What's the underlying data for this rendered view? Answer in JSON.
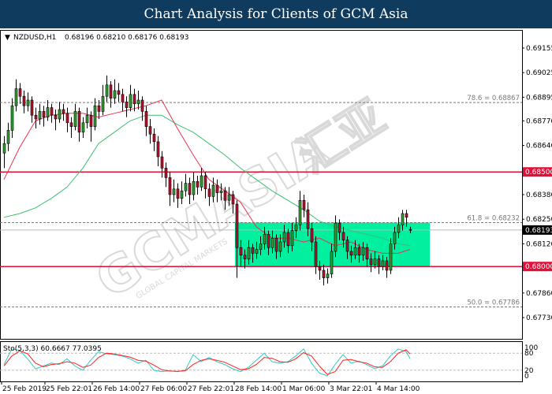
{
  "title": "Chart Analysis for Clients of GCM Asia",
  "chart_data": {
    "type": "candlestick",
    "symbol": "NZDUSD,H1",
    "ohlc_readout": "0.68196 0.68210 0.68176 0.68193",
    "colors": {
      "bull": "#2e9e2e",
      "bear": "#b5122e",
      "ma_fast": "#e8334f",
      "ma_slow": "#3cbf6f",
      "zone": "#00f0a0",
      "level": "#e0103a",
      "stoch_main": "#33c9c0",
      "stoch_signal": "#ff2020"
    },
    "ylim": [
      0.6765,
      0.6924
    ],
    "y_ticks": [
      "0.69155",
      "0.69025",
      "0.68895",
      "0.68770",
      "0.68640",
      "0.68380",
      "0.68250",
      "0.68120",
      "0.67860",
      "0.67730"
    ],
    "x_tick_labels": [
      "25 Feb 2019",
      "25 Feb 22:01",
      "26 Feb 14:00",
      "27 Feb 06:00",
      "27 Feb 22:01",
      "28 Feb 14:00",
      "1 Mar 06:00",
      "3 Mar 22:01",
      "4 Mar 14:00"
    ],
    "current_price": "0.68193",
    "levels": [
      {
        "label": "0.68500",
        "value": 0.685
      },
      {
        "label": "0.68000",
        "value": 0.68
      }
    ],
    "zone": {
      "from": 0.68,
      "to": 0.68232
    },
    "fib_levels": [
      {
        "label": "78.6 = 0.68867",
        "value": 0.68867
      },
      {
        "label": "61.8 = 0.68232",
        "value": 0.68232
      },
      {
        "label": "50.0 = 0.67786",
        "value": 0.67786
      }
    ],
    "candles": [
      [
        0.686,
        0.6869,
        0.6852,
        0.6865
      ],
      [
        0.6865,
        0.6876,
        0.6861,
        0.6872
      ],
      [
        0.6872,
        0.6889,
        0.6868,
        0.6885
      ],
      [
        0.6885,
        0.6899,
        0.6882,
        0.6894
      ],
      [
        0.6894,
        0.6897,
        0.6886,
        0.689
      ],
      [
        0.689,
        0.6893,
        0.6881,
        0.6885
      ],
      [
        0.6885,
        0.6892,
        0.6882,
        0.6888
      ],
      [
        0.6888,
        0.689,
        0.6876,
        0.688
      ],
      [
        0.688,
        0.6884,
        0.6873,
        0.6878
      ],
      [
        0.6878,
        0.6886,
        0.6875,
        0.6882
      ],
      [
        0.6882,
        0.6885,
        0.6874,
        0.6879
      ],
      [
        0.6879,
        0.6888,
        0.6877,
        0.6884
      ],
      [
        0.6884,
        0.6886,
        0.6876,
        0.688
      ],
      [
        0.688,
        0.6883,
        0.6872,
        0.6878
      ],
      [
        0.6878,
        0.6887,
        0.6876,
        0.6883
      ],
      [
        0.6883,
        0.6886,
        0.6877,
        0.6881
      ],
      [
        0.6881,
        0.6884,
        0.6871,
        0.6876
      ],
      [
        0.6876,
        0.6879,
        0.6868,
        0.6874
      ],
      [
        0.6874,
        0.6886,
        0.6872,
        0.6882
      ],
      [
        0.6882,
        0.6884,
        0.6866,
        0.6871
      ],
      [
        0.6871,
        0.6879,
        0.6868,
        0.6876
      ],
      [
        0.6876,
        0.6884,
        0.6873,
        0.688
      ],
      [
        0.688,
        0.6882,
        0.6866,
        0.6874
      ],
      [
        0.6874,
        0.6889,
        0.6872,
        0.6885
      ],
      [
        0.6885,
        0.6888,
        0.6878,
        0.6882
      ],
      [
        0.6882,
        0.6896,
        0.688,
        0.689
      ],
      [
        0.689,
        0.6901,
        0.6887,
        0.6896
      ],
      [
        0.6896,
        0.6898,
        0.6884,
        0.6889
      ],
      [
        0.6889,
        0.6899,
        0.6886,
        0.6893
      ],
      [
        0.6893,
        0.6897,
        0.6887,
        0.6891
      ],
      [
        0.6891,
        0.6894,
        0.6882,
        0.6887
      ],
      [
        0.6887,
        0.689,
        0.6879,
        0.6884
      ],
      [
        0.6884,
        0.6896,
        0.6882,
        0.6891
      ],
      [
        0.6891,
        0.6894,
        0.6882,
        0.6886
      ],
      [
        0.6886,
        0.6893,
        0.6883,
        0.6888
      ],
      [
        0.6888,
        0.689,
        0.6877,
        0.6882
      ],
      [
        0.6882,
        0.6885,
        0.6869,
        0.6874
      ],
      [
        0.6874,
        0.6878,
        0.6865,
        0.687
      ],
      [
        0.687,
        0.6873,
        0.6861,
        0.6866
      ],
      [
        0.6866,
        0.6869,
        0.6853,
        0.6858
      ],
      [
        0.6858,
        0.6861,
        0.6847,
        0.6852
      ],
      [
        0.6852,
        0.6855,
        0.6842,
        0.6847
      ],
      [
        0.6847,
        0.685,
        0.6832,
        0.6838
      ],
      [
        0.6838,
        0.6846,
        0.6834,
        0.6841
      ],
      [
        0.6841,
        0.6844,
        0.6831,
        0.6836
      ],
      [
        0.6836,
        0.6845,
        0.6833,
        0.684
      ],
      [
        0.684,
        0.6849,
        0.6837,
        0.6844
      ],
      [
        0.6844,
        0.6847,
        0.6833,
        0.6838
      ],
      [
        0.6838,
        0.685,
        0.6835,
        0.6845
      ],
      [
        0.6845,
        0.6848,
        0.6838,
        0.6842
      ],
      [
        0.6842,
        0.6852,
        0.684,
        0.6848
      ],
      [
        0.6848,
        0.685,
        0.6836,
        0.6841
      ],
      [
        0.6841,
        0.6844,
        0.6832,
        0.6837
      ],
      [
        0.6837,
        0.6847,
        0.6834,
        0.6843
      ],
      [
        0.6843,
        0.6846,
        0.6834,
        0.6839
      ],
      [
        0.6839,
        0.6844,
        0.6835,
        0.684
      ],
      [
        0.684,
        0.6842,
        0.683,
        0.6835
      ],
      [
        0.6835,
        0.6842,
        0.6832,
        0.6838
      ],
      [
        0.6838,
        0.684,
        0.6828,
        0.6833
      ],
      [
        0.6833,
        0.6835,
        0.6794,
        0.681
      ],
      [
        0.681,
        0.6814,
        0.68,
        0.6806
      ],
      [
        0.6806,
        0.6809,
        0.6799,
        0.6804
      ],
      [
        0.6804,
        0.6814,
        0.6801,
        0.681
      ],
      [
        0.681,
        0.6812,
        0.6802,
        0.6807
      ],
      [
        0.6807,
        0.6813,
        0.6804,
        0.6809
      ],
      [
        0.6809,
        0.6816,
        0.6806,
        0.6812
      ],
      [
        0.6812,
        0.6821,
        0.6809,
        0.6817
      ],
      [
        0.6817,
        0.6819,
        0.6806,
        0.681
      ],
      [
        0.681,
        0.6819,
        0.6807,
        0.6815
      ],
      [
        0.6815,
        0.6817,
        0.6804,
        0.6808
      ],
      [
        0.6808,
        0.6817,
        0.6805,
        0.6813
      ],
      [
        0.6813,
        0.6822,
        0.681,
        0.6818
      ],
      [
        0.6818,
        0.682,
        0.6807,
        0.6811
      ],
      [
        0.6811,
        0.6823,
        0.6808,
        0.6819
      ],
      [
        0.6819,
        0.6826,
        0.6815,
        0.6822
      ],
      [
        0.6822,
        0.684,
        0.6819,
        0.6835
      ],
      [
        0.6835,
        0.6838,
        0.6826,
        0.683
      ],
      [
        0.683,
        0.6834,
        0.6816,
        0.682
      ],
      [
        0.682,
        0.6823,
        0.6808,
        0.6813
      ],
      [
        0.6813,
        0.6816,
        0.6796,
        0.68
      ],
      [
        0.68,
        0.6803,
        0.6793,
        0.6798
      ],
      [
        0.6798,
        0.6801,
        0.679,
        0.6794
      ],
      [
        0.6794,
        0.6799,
        0.6791,
        0.6796
      ],
      [
        0.6796,
        0.6812,
        0.6794,
        0.6808
      ],
      [
        0.6808,
        0.6827,
        0.6805,
        0.6823
      ],
      [
        0.6823,
        0.6825,
        0.6814,
        0.6818
      ],
      [
        0.6818,
        0.6821,
        0.681,
        0.6814
      ],
      [
        0.6814,
        0.6816,
        0.6804,
        0.6808
      ],
      [
        0.6808,
        0.6811,
        0.6802,
        0.6806
      ],
      [
        0.6806,
        0.6814,
        0.6804,
        0.681
      ],
      [
        0.681,
        0.6812,
        0.6802,
        0.6806
      ],
      [
        0.6806,
        0.6813,
        0.6803,
        0.681
      ],
      [
        0.681,
        0.6812,
        0.68,
        0.6804
      ],
      [
        0.6804,
        0.6807,
        0.6797,
        0.6801
      ],
      [
        0.6801,
        0.6808,
        0.6799,
        0.6804
      ],
      [
        0.6804,
        0.6806,
        0.6796,
        0.68
      ],
      [
        0.68,
        0.6806,
        0.6798,
        0.6803
      ],
      [
        0.6803,
        0.6805,
        0.6794,
        0.6798
      ],
      [
        0.6798,
        0.6815,
        0.6796,
        0.6812
      ],
      [
        0.6812,
        0.6821,
        0.6809,
        0.6818
      ],
      [
        0.6818,
        0.6826,
        0.6815,
        0.6822
      ],
      [
        0.6822,
        0.683,
        0.6819,
        0.6828
      ],
      [
        0.6828,
        0.683,
        0.6821,
        0.6826
      ],
      [
        0.68196,
        0.6821,
        0.68176,
        0.68193
      ]
    ],
    "ma_fast": [
      0.6846,
      0.6863,
      0.6877,
      0.688,
      0.6881,
      0.6881,
      0.6879,
      0.6881,
      0.6883,
      0.6885,
      0.6888,
      0.6873,
      0.6859,
      0.6846,
      0.684,
      0.6834,
      0.6821,
      0.6815,
      0.6815,
      0.6813,
      0.6815,
      0.6811,
      0.6813,
      0.6809,
      0.6807,
      0.6807,
      0.6809
    ],
    "ma_slow": [
      0.6826,
      0.6828,
      0.6831,
      0.6836,
      0.6842,
      0.6852,
      0.6865,
      0.6871,
      0.6877,
      0.688,
      0.688,
      0.6875,
      0.6871,
      0.6865,
      0.6859,
      0.6852,
      0.6846,
      0.684,
      0.6835,
      0.683,
      0.6824,
      0.6821,
      0.6819,
      0.6817,
      0.6815,
      0.6812,
      0.6811
    ],
    "stochastic": {
      "label": "Sto(5,3,3) 60.6667 77.0395",
      "y_ticks": [
        "100",
        "80",
        "20",
        "0"
      ],
      "levels": [
        80,
        20
      ],
      "main": [
        40,
        95,
        90,
        60,
        25,
        35,
        45,
        40,
        60,
        35,
        20,
        55,
        85,
        78,
        75,
        70,
        60,
        45,
        55,
        20,
        15,
        18,
        15,
        20,
        75,
        50,
        65,
        50,
        40,
        25,
        15,
        30,
        55,
        80,
        50,
        45,
        50,
        70,
        95,
        45,
        10,
        0,
        40,
        75,
        45,
        52,
        40,
        25,
        35,
        70,
        95,
        85,
        60.67
      ],
      "signal": [
        35,
        70,
        88,
        78,
        45,
        32,
        40,
        43,
        50,
        45,
        30,
        38,
        65,
        80,
        77,
        72,
        66,
        55,
        52,
        38,
        22,
        17,
        16,
        18,
        40,
        55,
        60,
        55,
        48,
        35,
        22,
        25,
        40,
        65,
        62,
        50,
        48,
        60,
        82,
        70,
        35,
        5,
        15,
        55,
        58,
        50,
        45,
        32,
        30,
        50,
        80,
        92,
        77.04
      ]
    }
  },
  "watermark": {
    "logo": "GCMASIA 汇亚",
    "tagline": "GLOBAL CAPITAL MARKETS"
  }
}
